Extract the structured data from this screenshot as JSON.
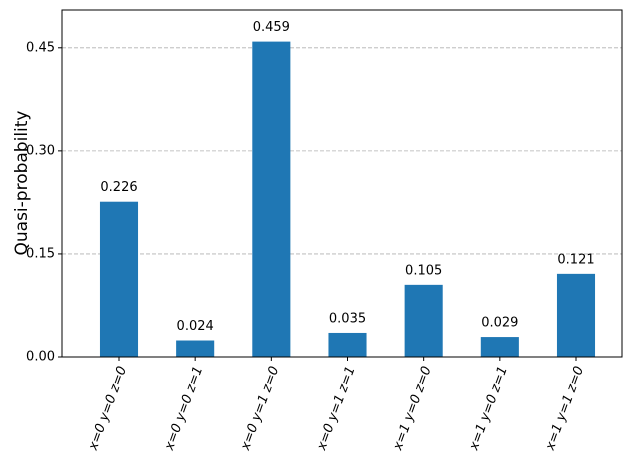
{
  "chart_data": {
    "type": "bar",
    "ylabel": "Quasi-probability",
    "categories": [
      "x=0 y=0 z=0",
      "x=0 y=0 z=1",
      "x=0 y=1 z=0",
      "x=0 y=1 z=1",
      "x=1 y=0 z=0",
      "x=1 y=0 z=1",
      "x=1 y=1 z=0"
    ],
    "values": [
      0.226,
      0.024,
      0.459,
      0.035,
      0.105,
      0.029,
      0.121
    ],
    "color": "#1f77b4",
    "ylim": [
      0,
      0.505
    ],
    "yticks": [
      {
        "value": 0,
        "label": "0.00"
      },
      0.15,
      {
        "value": 0.3,
        "label": "0.30"
      },
      0.45
    ],
    "grid": true
  }
}
